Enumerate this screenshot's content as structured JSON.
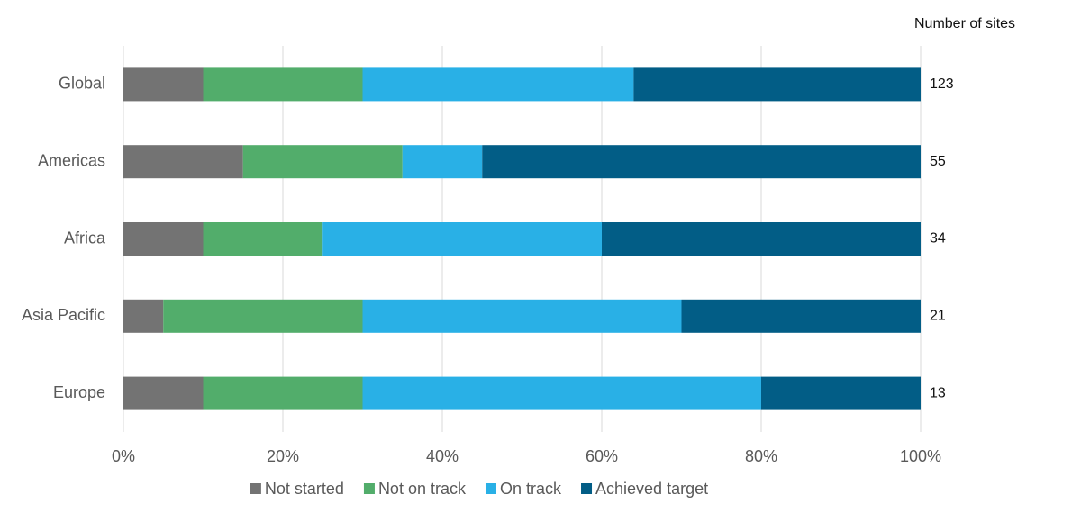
{
  "chart_data": {
    "type": "stacked_barh",
    "categories": [
      "Global",
      "Americas",
      "Africa",
      "Asia Pacific",
      "Europe"
    ],
    "series": [
      {
        "name": "Not started",
        "color": "#737373",
        "values": [
          10,
          15,
          10,
          5,
          10
        ]
      },
      {
        "name": "Not on track",
        "color": "#52ad6b",
        "values": [
          20,
          20,
          15,
          25,
          20
        ]
      },
      {
        "name": "On track",
        "color": "#29b0e6",
        "values": [
          34,
          10,
          35,
          40,
          50
        ]
      },
      {
        "name": "Achieved target",
        "color": "#025d86",
        "values": [
          36,
          55,
          40,
          30,
          20
        ]
      }
    ],
    "xlim": [
      0,
      100
    ],
    "xticks": [
      {
        "value": 0,
        "label": "0%"
      },
      {
        "value": 20,
        "label": "20%"
      },
      {
        "value": 40,
        "label": "40%"
      },
      {
        "value": 60,
        "label": "60%"
      },
      {
        "value": 80,
        "label": "80%"
      },
      {
        "value": 100,
        "label": "100%"
      }
    ],
    "grid": true,
    "legend": "bottom",
    "sites_label": "Number of sites",
    "sites": [
      123,
      55,
      34,
      21,
      13
    ]
  }
}
